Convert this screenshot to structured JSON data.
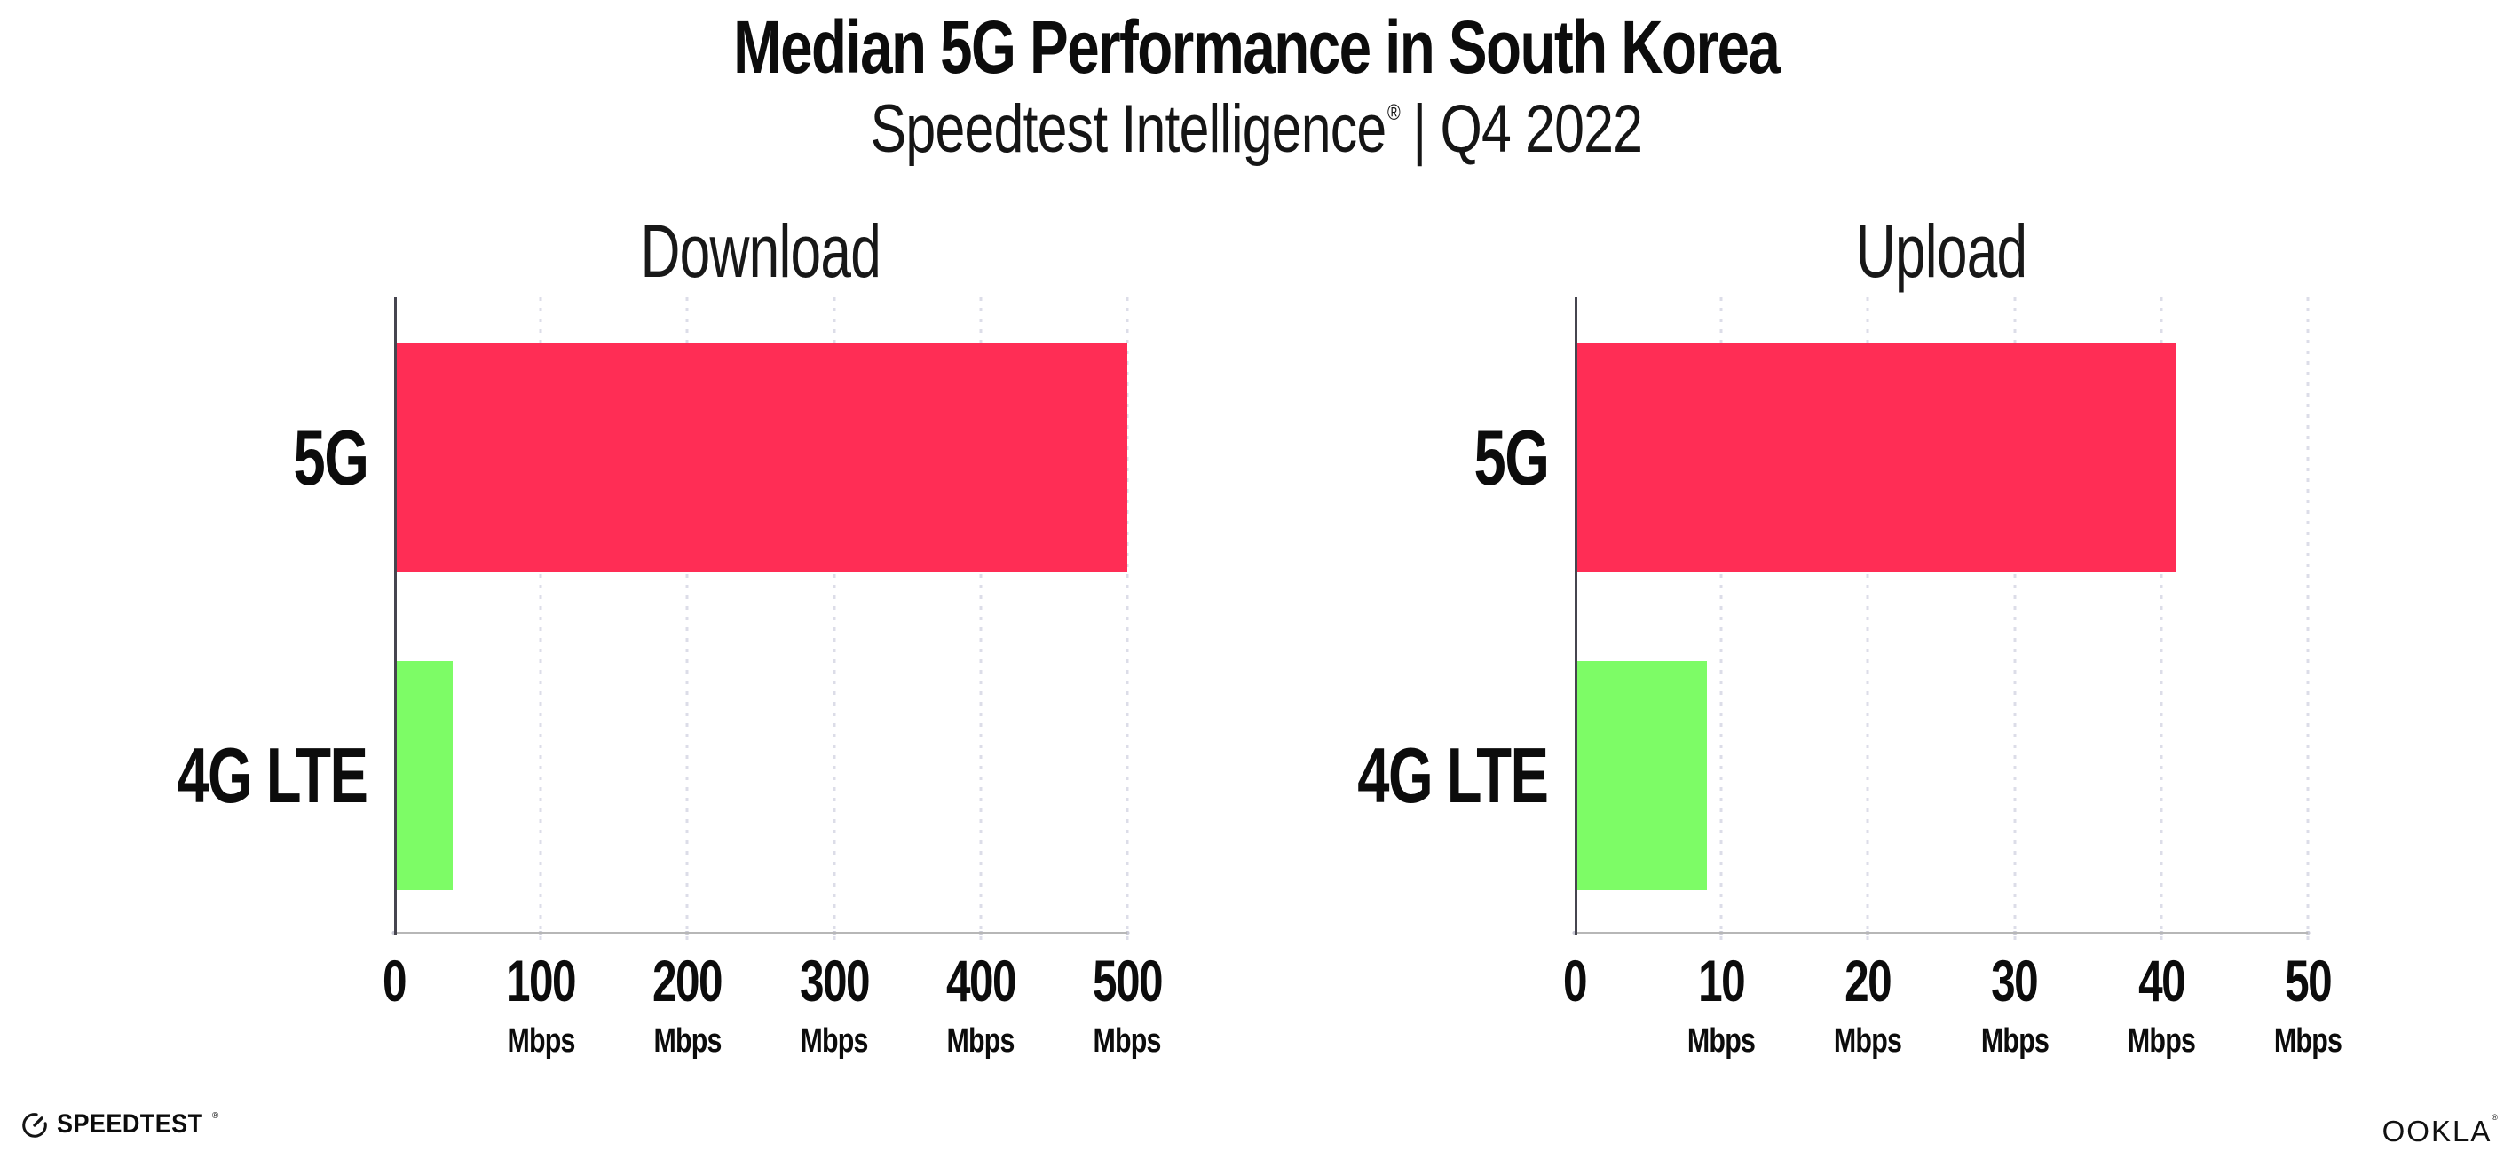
{
  "header": {
    "title": "Median 5G Performance in South Korea",
    "subtitle_brand": "Speedtest Intelligence",
    "subtitle_reg": "®",
    "subtitle_rest": " | Q4 2022"
  },
  "footer": {
    "speedtest_label": "SPEEDTEST",
    "speedtest_reg": "®",
    "speedtest_icon": "gauge-icon",
    "ookla_label": "OOKLA",
    "ookla_reg": "®"
  },
  "colors": {
    "bar_5g": "#ff2d55",
    "bar_4g_lte": "#7dfc66",
    "gridline": "#dcdde8",
    "x_axis_line": "#b7b7b7",
    "y_axis_line": "#46454f",
    "text": "#0c0c0c"
  },
  "chart_data": [
    {
      "type": "bar",
      "orientation": "horizontal",
      "title": "Download",
      "categories": [
        "5G",
        "4G LTE"
      ],
      "values": [
        500,
        40
      ],
      "unit": "Mbps",
      "xlabel": "",
      "ylabel": "",
      "xlim": [
        0,
        500
      ],
      "xticks": [
        0,
        100,
        200,
        300,
        400,
        500
      ],
      "bar_colors": [
        "#ff2d55",
        "#7dfc66"
      ],
      "grid": "dotted-vertical",
      "legend": "none"
    },
    {
      "type": "bar",
      "orientation": "horizontal",
      "title": "Upload",
      "categories": [
        "5G",
        "4G LTE"
      ],
      "values": [
        41,
        9
      ],
      "unit": "Mbps",
      "xlabel": "",
      "ylabel": "",
      "xlim": [
        0,
        50
      ],
      "xticks": [
        0,
        10,
        20,
        30,
        40,
        50
      ],
      "bar_colors": [
        "#ff2d55",
        "#7dfc66"
      ],
      "grid": "dotted-vertical",
      "legend": "none"
    }
  ]
}
